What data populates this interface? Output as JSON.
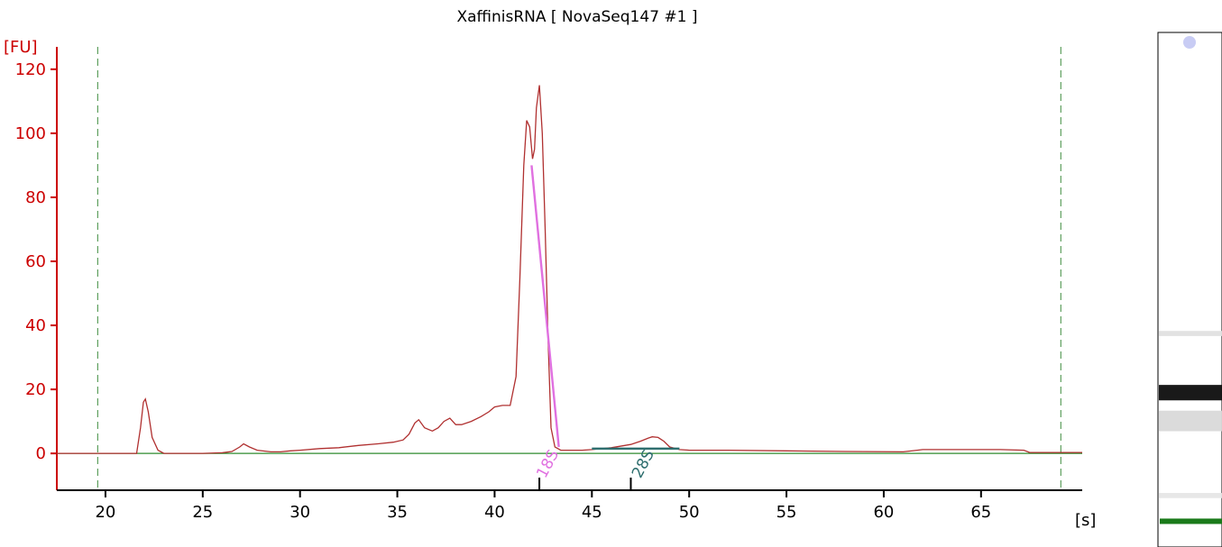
{
  "chart_data": {
    "type": "line",
    "title": "XaffinisRNA  [ NovaSeq147 #1 ]",
    "ylabel": "[FU]",
    "xlabel": "[s]",
    "xlim": [
      17.5,
      70.2
    ],
    "ylim": [
      -11.5,
      127
    ],
    "xticks": [
      20,
      25,
      30,
      35,
      40,
      45,
      50,
      55,
      60,
      65
    ],
    "yticks": [
      0,
      20,
      40,
      60,
      80,
      100,
      120
    ],
    "grid": false,
    "colors": {
      "trace": "#b03030",
      "axis_y": "#cc0000",
      "baseline": "#2e8b2e",
      "marker_lines": "#3a8a3a",
      "peak_18s": "#e070e0",
      "peak_28s": "#2e6e6e",
      "gel_marker": "#1a7a1a"
    },
    "vertical_markers_x": [
      19.6,
      69.1
    ],
    "series": [
      {
        "x": [
          17.5,
          19.0,
          20.0,
          21.0,
          21.6,
          21.8,
          21.95,
          22.05,
          22.2,
          22.4,
          22.7,
          23.0,
          24.0,
          25.0,
          26.0,
          26.5,
          26.9,
          27.1,
          27.4,
          27.8,
          28.5,
          29.0,
          29.5,
          30.0,
          31.0,
          32.0,
          33.0,
          34.0,
          34.8,
          35.3,
          35.6,
          35.9,
          36.1,
          36.4,
          36.8,
          37.1,
          37.4,
          37.7,
          38.0,
          38.3,
          38.8,
          39.3,
          39.7,
          40.0,
          40.4,
          40.8,
          41.1,
          41.3,
          41.5,
          41.65,
          41.8,
          41.95,
          42.05,
          42.15,
          42.3,
          42.45,
          42.6,
          42.75,
          42.9,
          43.1,
          43.4,
          43.7,
          44.0,
          44.5,
          45.0,
          46.0,
          47.0,
          47.5,
          47.9,
          48.1,
          48.4,
          48.7,
          49.0,
          49.5,
          50.0,
          52.0,
          55.0,
          58.0,
          61.0,
          62.0,
          64.0,
          66.0,
          67.2,
          67.5,
          70.2
        ],
        "y": [
          0,
          0,
          0,
          0,
          0,
          8,
          16,
          17,
          13,
          5,
          1,
          0,
          0,
          0,
          0.2,
          0.6,
          2,
          3,
          2,
          1,
          0.5,
          0.5,
          0.8,
          1,
          1.5,
          1.8,
          2.5,
          3,
          3.5,
          4.2,
          6,
          9.5,
          10.5,
          8,
          7,
          8,
          10,
          11,
          9,
          9,
          10,
          11.5,
          13,
          14.5,
          15,
          15,
          24,
          55,
          90,
          104,
          102,
          92,
          95,
          108,
          115,
          100,
          70,
          35,
          8,
          2,
          1,
          1,
          1,
          1,
          1.2,
          1.8,
          2.8,
          3.8,
          4.8,
          5.2,
          5.0,
          3.8,
          2,
          1.2,
          1,
          1,
          0.8,
          0.6,
          0.5,
          1.2,
          1.2,
          1.2,
          1.0,
          0.3,
          0.3
        ]
      }
    ],
    "peaks": [
      {
        "label": "18S",
        "x_start": 41.9,
        "x_end": 43.3,
        "y_start": 90,
        "y_end": 2
      },
      {
        "label": "28S",
        "x_start": 45.0,
        "x_end": 49.5,
        "y_start": 1.5,
        "y_end": 1.5
      }
    ],
    "gel_lane": {
      "bands": [
        {
          "position": 0.7,
          "intensity": 0.95,
          "thickness": 0.03
        },
        {
          "position": 0.755,
          "intensity": 0.15,
          "thickness": 0.04
        },
        {
          "position": 0.585,
          "intensity": 0.12,
          "thickness": 0.01
        },
        {
          "position": 0.9,
          "intensity": 0.1,
          "thickness": 0.01
        }
      ],
      "marker_position": 0.95
    }
  }
}
